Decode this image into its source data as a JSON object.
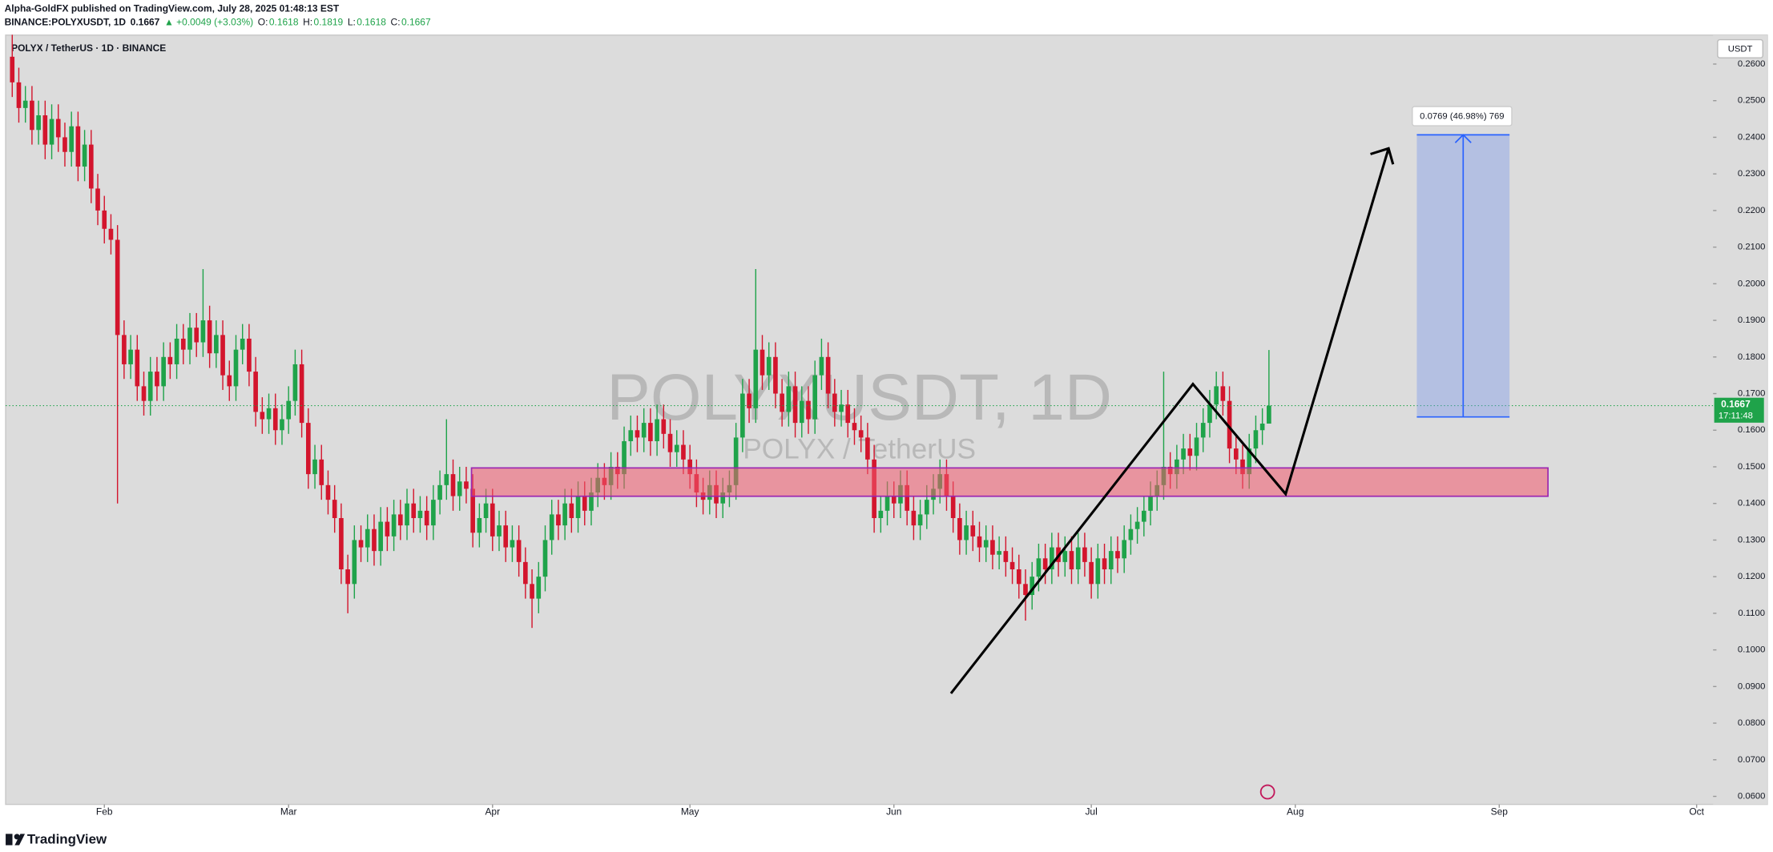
{
  "chart_data": {
    "type": "candlestick",
    "publisher": "Alpha-GoldFX published on TradingView.com, July 28, 2025 01:48:13 EST",
    "symbol": "BINANCE:POLYXUSDT, 1D",
    "change": "▲ +0.0049 (+3.03%)",
    "ohlc_labels": [
      "O:",
      "H:",
      "L:",
      "C:"
    ],
    "title": "POLYX / TetherUS · 1D · BINANCE",
    "watermark": "POLYXUSDT, 1D",
    "watermark_sub": "POLYX / TetherUS",
    "currency": "USDT",
    "countdown": "17:11:48",
    "measure_label": "0.0769 (46.98%) 769",
    "brand": "TradingView",
    "up_color": "#1fa34a",
    "down_color": "#d3152d",
    "grid": false,
    "xlim": [
      17,
      276.5
    ],
    "xticks": [
      {
        "value": 32,
        "label": "Feb"
      },
      {
        "value": 60,
        "label": "Mar"
      },
      {
        "value": 91,
        "label": "Apr"
      },
      {
        "value": 121,
        "label": "May"
      },
      {
        "value": 152,
        "label": "Jun"
      },
      {
        "value": 182,
        "label": "Jul"
      },
      {
        "value": 213,
        "label": "Aug"
      },
      {
        "value": 244,
        "label": "Sep"
      },
      {
        "value": 274,
        "label": "Oct"
      }
    ],
    "ylim": [
      0.0578,
      0.2679
    ],
    "yticks": [
      {
        "value": 0.06,
        "label": "0.0600"
      },
      {
        "value": 0.07,
        "label": "0.0700"
      },
      {
        "value": 0.08,
        "label": "0.0800"
      },
      {
        "value": 0.09,
        "label": "0.0900"
      },
      {
        "value": 0.1,
        "label": "0.1000"
      },
      {
        "value": 0.11,
        "label": "0.1100"
      },
      {
        "value": 0.12,
        "label": "0.1200"
      },
      {
        "value": 0.13,
        "label": "0.1300"
      },
      {
        "value": 0.14,
        "label": "0.1400"
      },
      {
        "value": 0.15,
        "label": "0.1500"
      },
      {
        "value": 0.16,
        "label": "0.1600"
      },
      {
        "value": 0.17,
        "label": "0.1700"
      },
      {
        "value": 0.18,
        "label": "0.1800"
      },
      {
        "value": 0.19,
        "label": "0.1900"
      },
      {
        "value": 0.2,
        "label": "0.2000"
      },
      {
        "value": 0.21,
        "label": "0.2100"
      },
      {
        "value": 0.22,
        "label": "0.2200"
      },
      {
        "value": 0.23,
        "label": "0.2300"
      },
      {
        "value": 0.24,
        "label": "0.2400"
      },
      {
        "value": 0.25,
        "label": "0.2500"
      },
      {
        "value": 0.26,
        "label": "0.2600"
      }
    ],
    "x": [
      18,
      19,
      20,
      21,
      22,
      23,
      24,
      25,
      26,
      27,
      28,
      29,
      30,
      31,
      32,
      33,
      34,
      35,
      36,
      37,
      38,
      39,
      40,
      41,
      42,
      43,
      44,
      45,
      46,
      47,
      48,
      49,
      50,
      51,
      52,
      53,
      54,
      55,
      56,
      57,
      58,
      59,
      60,
      61,
      62,
      63,
      64,
      65,
      66,
      67,
      68,
      69,
      70,
      71,
      72,
      73,
      74,
      75,
      76,
      77,
      78,
      79,
      80,
      81,
      82,
      83,
      84,
      85,
      86,
      87,
      88,
      89,
      90,
      91,
      92,
      93,
      94,
      95,
      96,
      97,
      98,
      99,
      100,
      101,
      102,
      103,
      104,
      105,
      106,
      107,
      108,
      109,
      110,
      111,
      112,
      113,
      114,
      115,
      116,
      117,
      118,
      119,
      120,
      121,
      122,
      123,
      124,
      125,
      126,
      127,
      128,
      129,
      130,
      131,
      132,
      133,
      134,
      135,
      136,
      137,
      138,
      139,
      140,
      141,
      142,
      143,
      144,
      145,
      146,
      147,
      148,
      149,
      150,
      151,
      152,
      153,
      154,
      155,
      156,
      157,
      158,
      159,
      160,
      161,
      162,
      163,
      164,
      165,
      166,
      167,
      168,
      169,
      170,
      171,
      172,
      173,
      174,
      175,
      176,
      177,
      178,
      179,
      180,
      181,
      182,
      183,
      184,
      185,
      186,
      187,
      188,
      189,
      190,
      191,
      192,
      193,
      194,
      195,
      196,
      197,
      198,
      199,
      200,
      201,
      202,
      203,
      204,
      205,
      206,
      207,
      208,
      209
    ],
    "open": [
      0.262,
      0.255,
      0.248,
      0.25,
      0.242,
      0.246,
      0.238,
      0.245,
      0.24,
      0.236,
      0.243,
      0.232,
      0.238,
      0.226,
      0.22,
      0.215,
      0.212,
      0.186,
      0.178,
      0.182,
      0.172,
      0.168,
      0.176,
      0.172,
      0.18,
      0.178,
      0.185,
      0.182,
      0.188,
      0.184,
      0.19,
      0.181,
      0.186,
      0.175,
      0.172,
      0.182,
      0.185,
      0.176,
      0.165,
      0.163,
      0.166,
      0.16,
      0.163,
      0.168,
      0.178,
      0.162,
      0.148,
      0.152,
      0.145,
      0.141,
      0.136,
      0.122,
      0.118,
      0.13,
      0.128,
      0.133,
      0.127,
      0.135,
      0.131,
      0.137,
      0.134,
      0.14,
      0.136,
      0.138,
      0.134,
      0.141,
      0.145,
      0.148,
      0.142,
      0.146,
      0.144,
      0.132,
      0.136,
      0.14,
      0.131,
      0.134,
      0.128,
      0.13,
      0.124,
      0.118,
      0.114,
      0.12,
      0.13,
      0.137,
      0.134,
      0.14,
      0.136,
      0.142,
      0.138,
      0.143,
      0.147,
      0.145,
      0.15,
      0.148,
      0.157,
      0.16,
      0.158,
      0.162,
      0.157,
      0.163,
      0.159,
      0.154,
      0.156,
      0.152,
      0.148,
      0.143,
      0.141,
      0.145,
      0.14,
      0.143,
      0.145,
      0.158,
      0.17,
      0.166,
      0.182,
      0.175,
      0.18,
      0.17,
      0.165,
      0.172,
      0.162,
      0.168,
      0.163,
      0.175,
      0.18,
      0.17,
      0.165,
      0.167,
      0.162,
      0.16,
      0.158,
      0.152,
      0.136,
      0.138,
      0.142,
      0.14,
      0.145,
      0.138,
      0.134,
      0.137,
      0.141,
      0.144,
      0.148,
      0.142,
      0.136,
      0.13,
      0.134,
      0.131,
      0.128,
      0.13,
      0.126,
      0.127,
      0.124,
      0.122,
      0.118,
      0.115,
      0.12,
      0.125,
      0.122,
      0.128,
      0.124,
      0.127,
      0.122,
      0.128,
      0.124,
      0.118,
      0.125,
      0.122,
      0.127,
      0.125,
      0.13,
      0.133,
      0.135,
      0.138,
      0.142,
      0.145,
      0.15,
      0.148,
      0.152,
      0.155,
      0.153,
      0.158,
      0.162,
      0.167,
      0.172,
      0.168,
      0.155,
      0.152,
      0.148,
      0.155,
      0.16,
      0.1618
    ],
    "high": [
      0.268,
      0.259,
      0.254,
      0.254,
      0.25,
      0.25,
      0.249,
      0.249,
      0.244,
      0.247,
      0.247,
      0.242,
      0.242,
      0.23,
      0.224,
      0.219,
      0.216,
      0.19,
      0.186,
      0.186,
      0.176,
      0.18,
      0.18,
      0.184,
      0.184,
      0.189,
      0.189,
      0.192,
      0.192,
      0.204,
      0.194,
      0.19,
      0.19,
      0.179,
      0.186,
      0.189,
      0.189,
      0.18,
      0.169,
      0.17,
      0.17,
      0.167,
      0.172,
      0.182,
      0.182,
      0.166,
      0.156,
      0.156,
      0.149,
      0.145,
      0.14,
      0.126,
      0.134,
      0.134,
      0.137,
      0.137,
      0.139,
      0.139,
      0.141,
      0.141,
      0.144,
      0.144,
      0.142,
      0.142,
      0.145,
      0.149,
      0.163,
      0.152,
      0.15,
      0.15,
      0.148,
      0.14,
      0.144,
      0.144,
      0.138,
      0.138,
      0.134,
      0.134,
      0.128,
      0.122,
      0.124,
      0.134,
      0.141,
      0.141,
      0.144,
      0.144,
      0.146,
      0.146,
      0.147,
      0.151,
      0.151,
      0.154,
      0.154,
      0.161,
      0.164,
      0.164,
      0.166,
      0.166,
      0.167,
      0.167,
      0.163,
      0.16,
      0.16,
      0.156,
      0.152,
      0.147,
      0.149,
      0.149,
      0.147,
      0.149,
      0.162,
      0.174,
      0.174,
      0.204,
      0.186,
      0.184,
      0.184,
      0.174,
      0.176,
      0.176,
      0.172,
      0.172,
      0.179,
      0.185,
      0.184,
      0.174,
      0.171,
      0.171,
      0.166,
      0.164,
      0.162,
      0.156,
      0.142,
      0.146,
      0.146,
      0.149,
      0.149,
      0.142,
      0.141,
      0.145,
      0.148,
      0.152,
      0.152,
      0.146,
      0.14,
      0.138,
      0.138,
      0.135,
      0.134,
      0.134,
      0.131,
      0.131,
      0.128,
      0.126,
      0.122,
      0.124,
      0.129,
      0.129,
      0.132,
      0.132,
      0.131,
      0.131,
      0.132,
      0.132,
      0.128,
      0.129,
      0.129,
      0.131,
      0.131,
      0.134,
      0.137,
      0.139,
      0.142,
      0.146,
      0.149,
      0.176,
      0.154,
      0.156,
      0.159,
      0.159,
      0.162,
      0.166,
      0.171,
      0.176,
      0.176,
      0.172,
      0.159,
      0.156,
      0.159,
      0.164,
      0.166,
      0.1819
    ],
    "low": [
      0.251,
      0.244,
      0.244,
      0.238,
      0.238,
      0.234,
      0.234,
      0.236,
      0.232,
      0.232,
      0.228,
      0.228,
      0.222,
      0.216,
      0.211,
      0.208,
      0.14,
      0.174,
      0.174,
      0.168,
      0.164,
      0.164,
      0.168,
      0.168,
      0.174,
      0.174,
      0.178,
      0.178,
      0.18,
      0.18,
      0.177,
      0.177,
      0.171,
      0.168,
      0.168,
      0.178,
      0.172,
      0.161,
      0.159,
      0.159,
      0.156,
      0.156,
      0.159,
      0.164,
      0.158,
      0.144,
      0.144,
      0.141,
      0.137,
      0.132,
      0.118,
      0.11,
      0.114,
      0.124,
      0.124,
      0.123,
      0.123,
      0.127,
      0.127,
      0.13,
      0.13,
      0.132,
      0.132,
      0.13,
      0.13,
      0.137,
      0.141,
      0.138,
      0.138,
      0.14,
      0.128,
      0.128,
      0.132,
      0.127,
      0.127,
      0.124,
      0.124,
      0.12,
      0.114,
      0.106,
      0.11,
      0.116,
      0.126,
      0.13,
      0.13,
      0.132,
      0.132,
      0.134,
      0.134,
      0.139,
      0.141,
      0.141,
      0.144,
      0.144,
      0.153,
      0.154,
      0.154,
      0.153,
      0.153,
      0.155,
      0.15,
      0.15,
      0.148,
      0.144,
      0.139,
      0.137,
      0.137,
      0.136,
      0.136,
      0.139,
      0.141,
      0.154,
      0.162,
      0.162,
      0.171,
      0.171,
      0.166,
      0.161,
      0.161,
      0.158,
      0.158,
      0.159,
      0.159,
      0.171,
      0.166,
      0.161,
      0.161,
      0.158,
      0.156,
      0.154,
      0.148,
      0.132,
      0.132,
      0.134,
      0.136,
      0.136,
      0.134,
      0.13,
      0.13,
      0.133,
      0.137,
      0.14,
      0.138,
      0.132,
      0.126,
      0.126,
      0.127,
      0.124,
      0.124,
      0.122,
      0.122,
      0.12,
      0.118,
      0.114,
      0.108,
      0.111,
      0.116,
      0.118,
      0.118,
      0.12,
      0.12,
      0.118,
      0.118,
      0.12,
      0.114,
      0.114,
      0.118,
      0.118,
      0.121,
      0.121,
      0.126,
      0.129,
      0.131,
      0.134,
      0.138,
      0.141,
      0.144,
      0.144,
      0.148,
      0.149,
      0.149,
      0.154,
      0.158,
      0.163,
      0.164,
      0.151,
      0.148,
      0.144,
      0.144,
      0.151,
      0.156,
      0.1618
    ],
    "close": [
      0.255,
      0.248,
      0.25,
      0.242,
      0.246,
      0.238,
      0.245,
      0.24,
      0.236,
      0.243,
      0.232,
      0.238,
      0.226,
      0.22,
      0.215,
      0.212,
      0.186,
      0.178,
      0.182,
      0.172,
      0.168,
      0.176,
      0.172,
      0.18,
      0.178,
      0.185,
      0.182,
      0.188,
      0.184,
      0.19,
      0.181,
      0.186,
      0.175,
      0.172,
      0.182,
      0.185,
      0.176,
      0.165,
      0.163,
      0.166,
      0.16,
      0.163,
      0.168,
      0.178,
      0.162,
      0.148,
      0.152,
      0.145,
      0.141,
      0.136,
      0.122,
      0.118,
      0.13,
      0.128,
      0.133,
      0.127,
      0.135,
      0.131,
      0.137,
      0.134,
      0.14,
      0.136,
      0.138,
      0.134,
      0.141,
      0.145,
      0.148,
      0.142,
      0.146,
      0.144,
      0.132,
      0.136,
      0.14,
      0.131,
      0.134,
      0.128,
      0.13,
      0.124,
      0.118,
      0.114,
      0.12,
      0.13,
      0.137,
      0.134,
      0.14,
      0.136,
      0.142,
      0.138,
      0.143,
      0.147,
      0.145,
      0.15,
      0.148,
      0.157,
      0.16,
      0.158,
      0.162,
      0.157,
      0.163,
      0.159,
      0.154,
      0.156,
      0.152,
      0.148,
      0.143,
      0.141,
      0.145,
      0.14,
      0.143,
      0.145,
      0.158,
      0.17,
      0.166,
      0.182,
      0.175,
      0.18,
      0.17,
      0.165,
      0.172,
      0.162,
      0.168,
      0.163,
      0.175,
      0.18,
      0.17,
      0.165,
      0.167,
      0.162,
      0.16,
      0.158,
      0.152,
      0.136,
      0.138,
      0.142,
      0.14,
      0.145,
      0.138,
      0.134,
      0.137,
      0.141,
      0.144,
      0.148,
      0.142,
      0.136,
      0.13,
      0.134,
      0.131,
      0.128,
      0.13,
      0.126,
      0.127,
      0.124,
      0.122,
      0.118,
      0.115,
      0.12,
      0.125,
      0.122,
      0.128,
      0.124,
      0.127,
      0.122,
      0.128,
      0.124,
      0.118,
      0.125,
      0.122,
      0.127,
      0.125,
      0.13,
      0.133,
      0.135,
      0.138,
      0.142,
      0.145,
      0.15,
      0.148,
      0.152,
      0.155,
      0.153,
      0.158,
      0.162,
      0.167,
      0.172,
      0.168,
      0.155,
      0.152,
      0.148,
      0.155,
      0.16,
      0.1618,
      0.1667
    ]
  }
}
